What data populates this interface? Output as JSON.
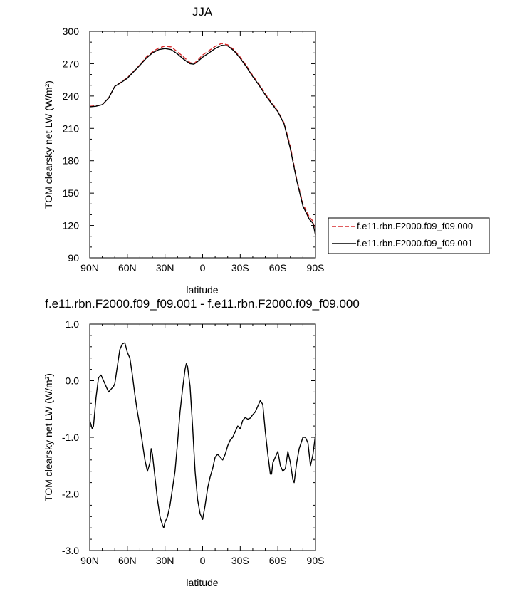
{
  "chart_data": [
    {
      "type": "line",
      "title": "JJA",
      "xlabel": "latitude",
      "ylabel": "TOM clearsky net LW (W/m²)",
      "xlim": [
        90,
        -90
      ],
      "ylim": [
        90,
        300
      ],
      "x_ticks": [
        90,
        60,
        30,
        0,
        -30,
        -60,
        -90
      ],
      "x_tick_labels": [
        "90N",
        "60N",
        "30N",
        "0",
        "30S",
        "60S",
        "90S"
      ],
      "y_ticks": [
        90,
        120,
        150,
        180,
        210,
        240,
        270,
        300
      ],
      "y_tick_labels": [
        "90",
        "120",
        "150",
        "180",
        "210",
        "240",
        "270",
        "300"
      ],
      "grid": false,
      "legend_position": "right",
      "series": [
        {
          "name": "f.e11.rbn.F2000.f09_f09.000",
          "color": "#d62728",
          "dash": "dashed",
          "points": [
            [
              90,
              230.5
            ],
            [
              85,
              231
            ],
            [
              80,
              232
            ],
            [
              75,
              238
            ],
            [
              70,
              249
            ],
            [
              65,
              253
            ],
            [
              60,
              257
            ],
            [
              55,
              263
            ],
            [
              50,
              269
            ],
            [
              45,
              276
            ],
            [
              40,
              281
            ],
            [
              35,
              284.5
            ],
            [
              30,
              286.3
            ],
            [
              25,
              285.5
            ],
            [
              20,
              281
            ],
            [
              15,
              276
            ],
            [
              10,
              271
            ],
            [
              7,
              270
            ],
            [
              5,
              272
            ],
            [
              0,
              278
            ],
            [
              -5,
              282
            ],
            [
              -10,
              286
            ],
            [
              -15,
              288.7
            ],
            [
              -20,
              287.5
            ],
            [
              -25,
              283
            ],
            [
              -30,
              276
            ],
            [
              -35,
              268
            ],
            [
              -40,
              259
            ],
            [
              -45,
              251
            ],
            [
              -50,
              242
            ],
            [
              -55,
              234
            ],
            [
              -60,
              226
            ],
            [
              -65,
              215
            ],
            [
              -70,
              193
            ],
            [
              -75,
              163
            ],
            [
              -80,
              140
            ],
            [
              -85,
              128
            ],
            [
              -88,
              124
            ],
            [
              -90,
              112.5
            ]
          ]
        },
        {
          "name": "f.e11.rbn.F2000.f09_f09.001",
          "color": "#000000",
          "dash": "solid",
          "points": [
            [
              90,
              230
            ],
            [
              85,
              230.5
            ],
            [
              80,
              232
            ],
            [
              75,
              238
            ],
            [
              70,
              249
            ],
            [
              65,
              252.5
            ],
            [
              60,
              256.5
            ],
            [
              55,
              262.5
            ],
            [
              50,
              268.5
            ],
            [
              45,
              275
            ],
            [
              40,
              280
            ],
            [
              35,
              283
            ],
            [
              30,
              284
            ],
            [
              25,
              283
            ],
            [
              20,
              279
            ],
            [
              15,
              274
            ],
            [
              10,
              270
            ],
            [
              7,
              269.5
            ],
            [
              5,
              271
            ],
            [
              0,
              276
            ],
            [
              -5,
              280
            ],
            [
              -10,
              284
            ],
            [
              -15,
              287
            ],
            [
              -20,
              286.5
            ],
            [
              -25,
              282
            ],
            [
              -30,
              275
            ],
            [
              -35,
              267
            ],
            [
              -40,
              258
            ],
            [
              -45,
              250
            ],
            [
              -50,
              241
            ],
            [
              -55,
              233
            ],
            [
              -60,
              225.5
            ],
            [
              -65,
              214
            ],
            [
              -70,
              191
            ],
            [
              -75,
              162
            ],
            [
              -80,
              138
            ],
            [
              -85,
              126
            ],
            [
              -88,
              122
            ],
            [
              -90,
              111
            ]
          ]
        }
      ]
    },
    {
      "type": "line",
      "title": "f.e11.rbn.F2000.f09_f09.001 - f.e11.rbn.F2000.f09_f09.000",
      "xlabel": "latitude",
      "ylabel": "TOM clearsky net LW (W/m²)",
      "xlim": [
        90,
        -90
      ],
      "ylim": [
        -3.0,
        1.0
      ],
      "x_ticks": [
        90,
        60,
        30,
        0,
        -30,
        -60,
        -90
      ],
      "x_tick_labels": [
        "90N",
        "60N",
        "30N",
        "0",
        "30S",
        "60S",
        "90S"
      ],
      "y_ticks": [
        1.0,
        0.0,
        -1.0,
        -2.0,
        -3.0
      ],
      "y_tick_labels": [
        "1.0",
        "0.0",
        "-1.0",
        "-2.0",
        "-3.0"
      ],
      "grid": false,
      "series": [
        {
          "color": "#000000",
          "dash": "solid",
          "points": [
            [
              90,
              -0.7
            ],
            [
              88,
              -0.85
            ],
            [
              87,
              -0.8
            ],
            [
              85,
              -0.3
            ],
            [
              83,
              0.05
            ],
            [
              81,
              0.1
            ],
            [
              79,
              0.0
            ],
            [
              77,
              -0.1
            ],
            [
              75,
              -0.2
            ],
            [
              73,
              -0.15
            ],
            [
              71,
              -0.1
            ],
            [
              70,
              -0.05
            ],
            [
              68,
              0.25
            ],
            [
              66,
              0.55
            ],
            [
              64,
              0.65
            ],
            [
              62,
              0.67
            ],
            [
              60,
              0.5
            ],
            [
              58,
              0.4
            ],
            [
              56,
              0.1
            ],
            [
              54,
              -0.25
            ],
            [
              52,
              -0.55
            ],
            [
              50,
              -0.8
            ],
            [
              48,
              -1.1
            ],
            [
              46,
              -1.4
            ],
            [
              44,
              -1.6
            ],
            [
              42,
              -1.45
            ],
            [
              41,
              -1.2
            ],
            [
              40,
              -1.3
            ],
            [
              38,
              -1.7
            ],
            [
              36,
              -2.1
            ],
            [
              34,
              -2.4
            ],
            [
              32,
              -2.55
            ],
            [
              31,
              -2.6
            ],
            [
              30,
              -2.5
            ],
            [
              28,
              -2.4
            ],
            [
              26,
              -2.2
            ],
            [
              24,
              -1.9
            ],
            [
              22,
              -1.6
            ],
            [
              20,
              -1.1
            ],
            [
              18,
              -0.55
            ],
            [
              16,
              -0.15
            ],
            [
              14,
              0.2
            ],
            [
              13,
              0.3
            ],
            [
              12,
              0.25
            ],
            [
              10,
              -0.1
            ],
            [
              8,
              -0.8
            ],
            [
              6,
              -1.6
            ],
            [
              4,
              -2.1
            ],
            [
              2,
              -2.35
            ],
            [
              0,
              -2.45
            ],
            [
              -2,
              -2.2
            ],
            [
              -4,
              -1.9
            ],
            [
              -6,
              -1.7
            ],
            [
              -8,
              -1.55
            ],
            [
              -10,
              -1.35
            ],
            [
              -12,
              -1.3
            ],
            [
              -14,
              -1.35
            ],
            [
              -16,
              -1.4
            ],
            [
              -18,
              -1.3
            ],
            [
              -20,
              -1.15
            ],
            [
              -22,
              -1.05
            ],
            [
              -24,
              -1.0
            ],
            [
              -26,
              -0.9
            ],
            [
              -28,
              -0.8
            ],
            [
              -30,
              -0.85
            ],
            [
              -32,
              -0.7
            ],
            [
              -34,
              -0.65
            ],
            [
              -36,
              -0.68
            ],
            [
              -38,
              -0.66
            ],
            [
              -40,
              -0.6
            ],
            [
              -42,
              -0.55
            ],
            [
              -44,
              -0.45
            ],
            [
              -46,
              -0.35
            ],
            [
              -48,
              -0.42
            ],
            [
              -50,
              -0.9
            ],
            [
              -52,
              -1.3
            ],
            [
              -54,
              -1.65
            ],
            [
              -55,
              -1.65
            ],
            [
              -56,
              -1.45
            ],
            [
              -58,
              -1.35
            ],
            [
              -60,
              -1.25
            ],
            [
              -62,
              -1.5
            ],
            [
              -64,
              -1.6
            ],
            [
              -66,
              -1.55
            ],
            [
              -68,
              -1.25
            ],
            [
              -70,
              -1.45
            ],
            [
              -72,
              -1.75
            ],
            [
              -73,
              -1.8
            ],
            [
              -75,
              -1.45
            ],
            [
              -77,
              -1.2
            ],
            [
              -80,
              -1.0
            ],
            [
              -82,
              -1.0
            ],
            [
              -84,
              -1.1
            ],
            [
              -86,
              -1.5
            ],
            [
              -88,
              -1.3
            ],
            [
              -90,
              -0.95
            ]
          ]
        }
      ]
    }
  ]
}
